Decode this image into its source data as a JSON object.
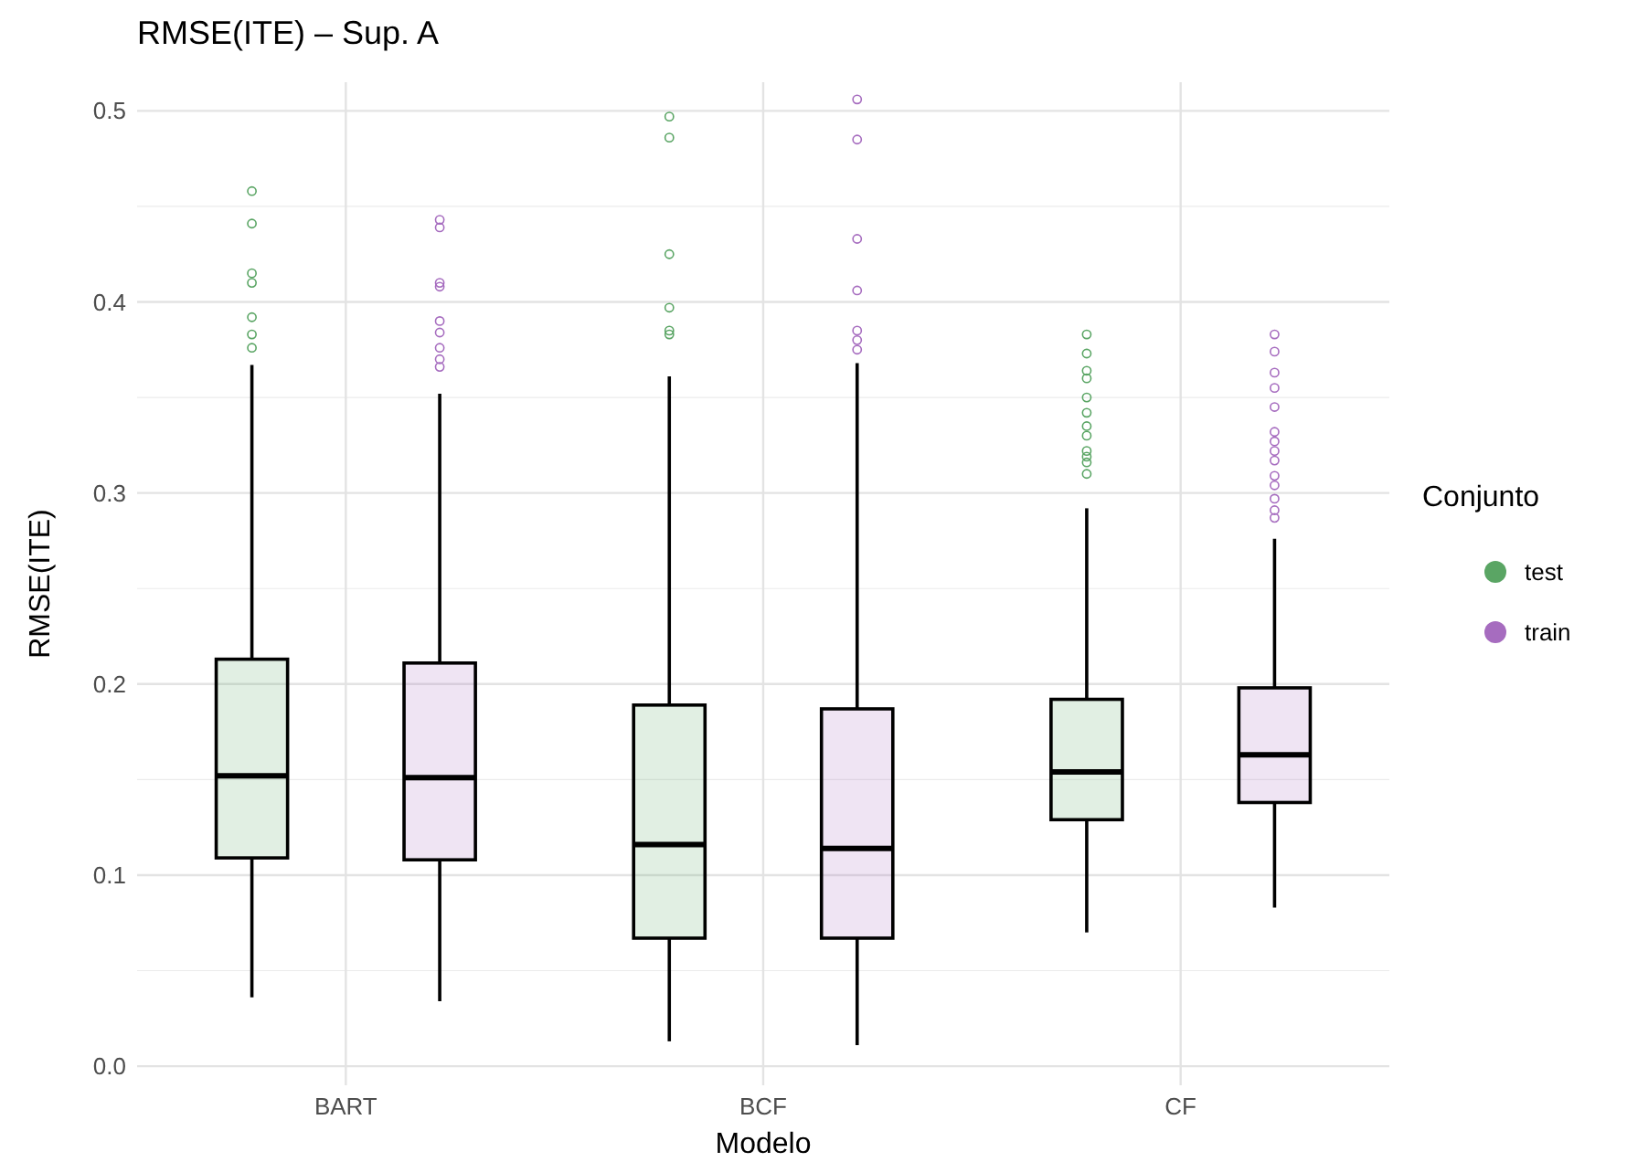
{
  "chart_data": {
    "type": "box",
    "title": "RMSE(ITE) – Sup. A",
    "xlabel": "Modelo",
    "ylabel": "RMSE(ITE)",
    "legend_title": "Conjunto",
    "categories": [
      "BART",
      "BCF",
      "CF"
    ],
    "ylim": [
      -0.01,
      0.515
    ],
    "yticks": [
      {
        "value": 0,
        "label": "0.0"
      },
      0.1,
      0.2,
      0.3,
      0.4,
      0.5
    ],
    "grid": true,
    "legend": "right",
    "series": [
      {
        "name": "test",
        "color": "#5aa564",
        "boxes": [
          {
            "low": 0.036,
            "q1": 0.109,
            "median": 0.152,
            "q3": 0.213,
            "high": 0.367,
            "outliers": [
              0.458,
              0.441,
              0.415,
              0.41,
              0.392,
              0.383,
              0.376
            ]
          },
          {
            "low": 0.013,
            "q1": 0.067,
            "median": 0.116,
            "q3": 0.189,
            "high": 0.361,
            "outliers": [
              0.497,
              0.486,
              0.425,
              0.397,
              0.385,
              0.383
            ]
          },
          {
            "low": 0.07,
            "q1": 0.129,
            "median": 0.154,
            "q3": 0.192,
            "high": 0.292,
            "outliers": [
              0.383,
              0.373,
              0.364,
              0.36,
              0.35,
              0.342,
              0.335,
              0.33,
              0.322,
              0.319,
              0.316,
              0.31
            ]
          }
        ]
      },
      {
        "name": "train",
        "color": "#a66cbf",
        "boxes": [
          {
            "low": 0.034,
            "q1": 0.108,
            "median": 0.151,
            "q3": 0.211,
            "high": 0.352,
            "outliers": [
              0.443,
              0.439,
              0.41,
              0.408,
              0.39,
              0.384,
              0.376,
              0.37,
              0.366
            ]
          },
          {
            "low": 0.011,
            "q1": 0.067,
            "median": 0.114,
            "q3": 0.187,
            "high": 0.368,
            "outliers": [
              0.506,
              0.485,
              0.433,
              0.406,
              0.385,
              0.38,
              0.375
            ]
          },
          {
            "low": 0.083,
            "q1": 0.138,
            "median": 0.163,
            "q3": 0.198,
            "high": 0.276,
            "outliers": [
              0.383,
              0.374,
              0.363,
              0.355,
              0.345,
              0.332,
              0.327,
              0.322,
              0.317,
              0.309,
              0.304,
              0.297,
              0.291,
              0.287
            ]
          }
        ]
      }
    ]
  }
}
